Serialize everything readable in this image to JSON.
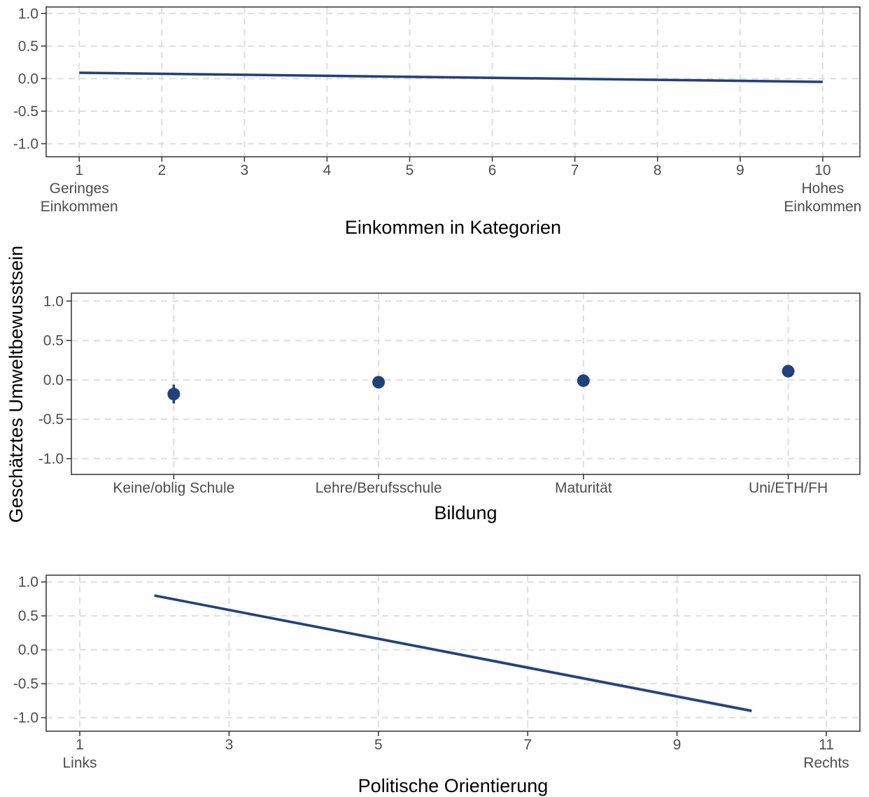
{
  "y_axis_title": "Geschätztes Umweltbewusstsein",
  "colors": {
    "series": "#22407a",
    "band": "#c9cfdf",
    "grid": "#dedede",
    "panel_border": "#333333",
    "tick_text": "#4d4d4d"
  },
  "chart_data": [
    {
      "type": "line",
      "xlabel": "Einkommen in Kategorien",
      "ylabel": "Geschätztes Umweltbewusstsein",
      "xlim": [
        0.6,
        10.45
      ],
      "ylim": [
        -1.2,
        1.1
      ],
      "x_ticks": [
        1,
        2,
        3,
        4,
        5,
        6,
        7,
        8,
        9,
        10
      ],
      "x_tick_labels": [
        "1",
        "2",
        "3",
        "4",
        "5",
        "6",
        "7",
        "8",
        "9",
        "10"
      ],
      "x_tick_sublabels": [
        {
          "x": 1,
          "lines": [
            "Geringes",
            "Einkommen"
          ]
        },
        {
          "x": 10,
          "lines": [
            "Hohes",
            "Einkommen"
          ]
        }
      ],
      "y_ticks": [
        -1.0,
        -0.5,
        0.0,
        0.5,
        1.0
      ],
      "y_tick_labels": [
        "-1.0",
        "-0.5",
        "0.0",
        "0.5",
        "1.0"
      ],
      "grid": true,
      "series": [
        {
          "x": [
            1,
            10
          ],
          "y": [
            0.09,
            -0.05
          ],
          "lower": [
            0.07,
            -0.07
          ],
          "upper": [
            0.11,
            -0.03
          ]
        }
      ]
    },
    {
      "type": "scatter",
      "xlabel": "Bildung",
      "ylabel": "Geschätztes Umweltbewusstsein",
      "ylim": [
        -1.2,
        1.1
      ],
      "categories": [
        "Keine/oblig Schule",
        "Lehre/Berufsschule",
        "Maturität",
        "Uni/ETH/FH"
      ],
      "y_ticks": [
        -1.0,
        -0.5,
        0.0,
        0.5,
        1.0
      ],
      "y_tick_labels": [
        "-1.0",
        "-0.5",
        "0.0",
        "0.5",
        "1.0"
      ],
      "grid": true,
      "series": [
        {
          "values": [
            -0.18,
            -0.03,
            -0.01,
            0.11
          ],
          "lower": [
            -0.3,
            -0.06,
            -0.04,
            0.08
          ],
          "upper": [
            -0.06,
            0.0,
            0.02,
            0.14
          ]
        }
      ]
    },
    {
      "type": "line",
      "xlabel": "Politische Orientierung",
      "ylabel": "Geschätztes Umweltbewusstsein",
      "xlim": [
        0.55,
        11.45
      ],
      "ylim": [
        -1.2,
        1.1
      ],
      "x_ticks": [
        1,
        3,
        5,
        7,
        9,
        11
      ],
      "x_tick_labels": [
        "1",
        "3",
        "5",
        "7",
        "9",
        "11"
      ],
      "x_tick_sublabels": [
        {
          "x": 1,
          "lines": [
            "Links"
          ]
        },
        {
          "x": 11,
          "lines": [
            "Rechts"
          ]
        }
      ],
      "y_ticks": [
        -1.0,
        -0.5,
        0.0,
        0.5,
        1.0
      ],
      "y_tick_labels": [
        "-1.0",
        "-0.5",
        "0.0",
        "0.5",
        "1.0"
      ],
      "grid": true,
      "series": [
        {
          "x": [
            2,
            10
          ],
          "y": [
            0.8,
            -0.9
          ],
          "lower": [
            0.78,
            -0.93
          ],
          "upper": [
            0.82,
            -0.87
          ]
        }
      ]
    }
  ]
}
